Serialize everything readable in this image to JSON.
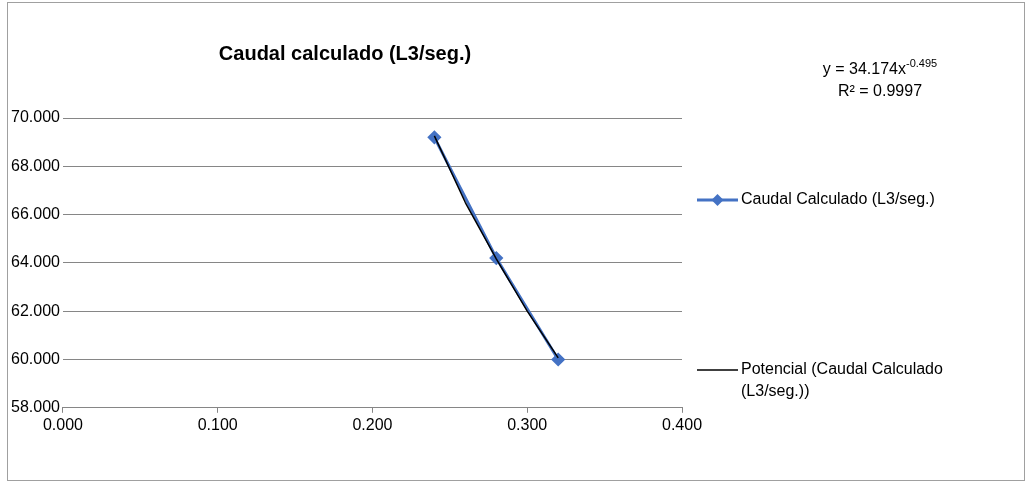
{
  "chart_data": {
    "type": "line",
    "title": "Caudal calculado (L3/seg.)",
    "annotations": [
      "y = 34.174x$^{-0.495}$",
      "R² = 0.9997"
    ],
    "series": [
      {
        "name": "Caudal Calculado (L3/seg.)",
        "color": "#4472c4",
        "x": [
          0.24,
          0.28,
          0.32
        ],
        "values": [
          69.2,
          64.2,
          60.0
        ],
        "marker": "diamond"
      },
      {
        "name": "Potencial (Caudal Calculado (L3/seg.))",
        "color": "#000000",
        "x": [
          0.24,
          0.26,
          0.28,
          0.3,
          0.32
        ],
        "values": [
          69.26,
          66.5,
          64.17,
          62.0,
          60.07
        ],
        "marker": "none"
      }
    ],
    "xlim": [
      0,
      0.4
    ],
    "xticks": [
      {
        "value": 0,
        "label": "0.000"
      },
      {
        "value": 0.1,
        "label": "0.100"
      },
      {
        "value": 0.2,
        "label": "0.200"
      },
      {
        "value": 0.3,
        "label": "0.300"
      },
      {
        "value": 0.4,
        "label": "0.400"
      }
    ],
    "ylim": [
      58,
      70
    ],
    "yticks": [
      {
        "value": 58,
        "label": "58.000"
      },
      {
        "value": 60,
        "label": "60.000"
      },
      {
        "value": 62,
        "label": "62.000"
      },
      {
        "value": 64,
        "label": "64.000"
      },
      {
        "value": 66,
        "label": "66.000"
      },
      {
        "value": 68,
        "label": "68.000"
      },
      {
        "value": 70,
        "label": "70.000"
      }
    ],
    "grid": "y",
    "legend": "right"
  }
}
